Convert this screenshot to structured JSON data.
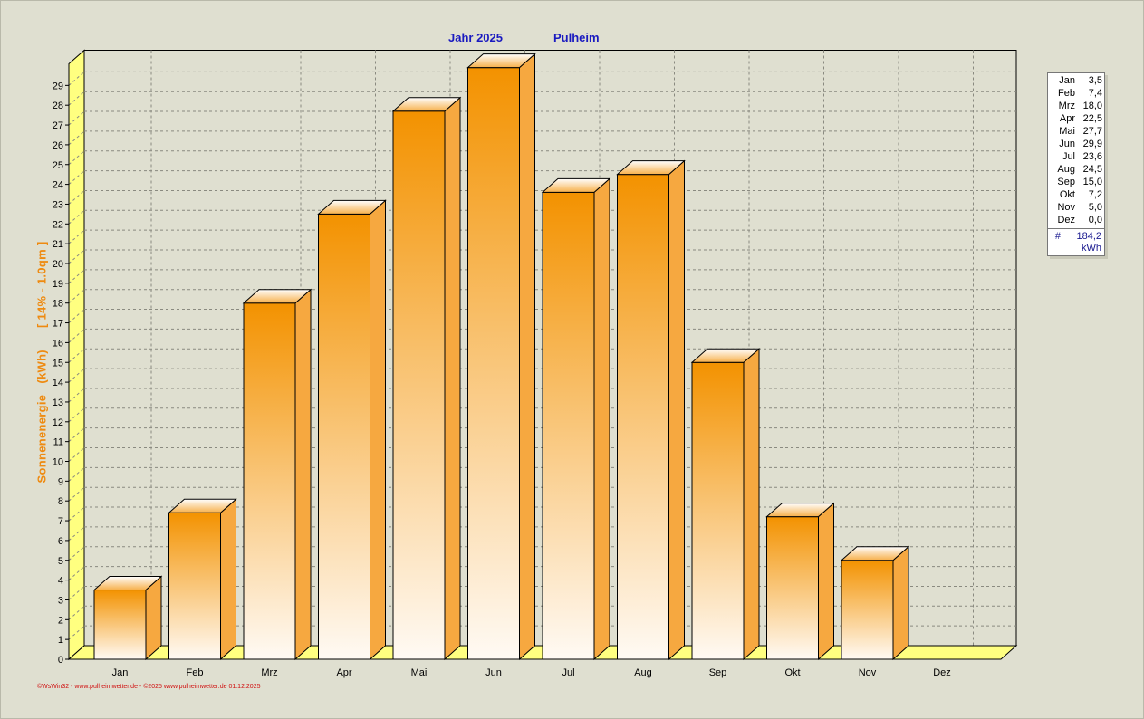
{
  "header": {
    "year_label": "Jahr  2025",
    "location": "Pulheim"
  },
  "chart_data": {
    "type": "bar",
    "categories": [
      "Jan",
      "Feb",
      "Mrz",
      "Apr",
      "Mai",
      "Jun",
      "Jul",
      "Aug",
      "Sep",
      "Okt",
      "Nov",
      "Dez"
    ],
    "values": [
      3.5,
      7.4,
      18.0,
      22.5,
      27.7,
      29.9,
      23.6,
      24.5,
      15.0,
      7.2,
      5.0,
      0.0
    ],
    "title": "Jahr  2025",
    "subtitle": "Pulheim",
    "ylabel": "Sonnenenergie  (kWh)     [ 14% - 1.0qm ]",
    "ylabel_parts": [
      "Sonnenenergie",
      "(kWh)",
      "[ 14% - 1.0qm ]"
    ],
    "ylim": [
      0,
      30
    ],
    "yticks": [
      0,
      1,
      2,
      3,
      4,
      5,
      6,
      7,
      8,
      9,
      10,
      11,
      12,
      13,
      14,
      15,
      16,
      17,
      18,
      19,
      20,
      21,
      22,
      23,
      24,
      25,
      26,
      27,
      28,
      29
    ],
    "grid": true,
    "legend_position": "right",
    "colors": {
      "bar_top": "#f39200",
      "bar_bottom": "#fffaf4",
      "floor": "#ffff80",
      "grid": "#8a8a80",
      "outline": "#000000"
    }
  },
  "legend": {
    "rows": [
      {
        "month": "Jan",
        "value": "3,5"
      },
      {
        "month": "Feb",
        "value": "7,4"
      },
      {
        "month": "Mrz",
        "value": "18,0"
      },
      {
        "month": "Apr",
        "value": "22,5"
      },
      {
        "month": "Mai",
        "value": "27,7"
      },
      {
        "month": "Jun",
        "value": "29,9"
      },
      {
        "month": "Jul",
        "value": "23,6"
      },
      {
        "month": "Aug",
        "value": "24,5"
      },
      {
        "month": "Sep",
        "value": "15,0"
      },
      {
        "month": "Okt",
        "value": "7,2"
      },
      {
        "month": "Nov",
        "value": "5,0"
      },
      {
        "month": "Dez",
        "value": "0,0"
      }
    ],
    "total_symbol": "#",
    "total_value": "184,2",
    "unit": "kWh"
  },
  "footer": "©WsWin32 - www.pulheimwetter.de - ©2025 www.pulheimwetter.de  01.12.2025"
}
